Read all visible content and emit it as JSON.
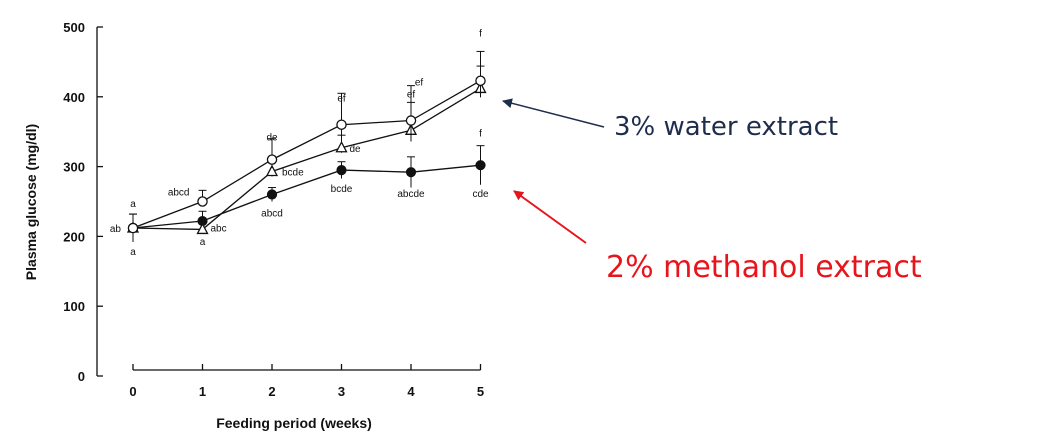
{
  "chart_data": {
    "type": "line",
    "title": "",
    "xlabel": "Feeding period  (weeks)",
    "ylabel": "Plasma glucose  (mg/dl)",
    "x": [
      0,
      1,
      2,
      3,
      4,
      5
    ],
    "xlim": [
      0,
      5
    ],
    "ylim": [
      0,
      500
    ],
    "yticks": [
      0,
      100,
      200,
      300,
      400,
      500
    ],
    "grid": false,
    "legend": "none",
    "series": [
      {
        "marker": "open-circle",
        "values": [
          212,
          250,
          310,
          360,
          366,
          423
        ],
        "errors": [
          20,
          16,
          30,
          45,
          50,
          42
        ],
        "labels": [
          "a",
          "abcd",
          "de",
          "ef",
          "ef",
          "f"
        ]
      },
      {
        "marker": "open-triangle",
        "values": [
          212,
          210,
          293,
          327,
          352,
          412
        ],
        "errors": [
          20,
          12,
          18,
          18,
          40,
          32
        ],
        "labels": [
          "ab",
          "abc",
          "bcde",
          "de",
          "ef",
          "f"
        ]
      },
      {
        "marker": "filled-circle",
        "values": [
          212,
          222,
          260,
          295,
          292,
          302
        ],
        "errors": [
          20,
          14,
          10,
          12,
          22,
          28
        ],
        "labels": [
          "a",
          "a",
          "abcd",
          "bcde",
          "abcde",
          "cde"
        ]
      }
    ],
    "annotations": [
      {
        "text": "3% water extract",
        "color": "#1f2d4d",
        "points_to": "open symbols at week 5"
      },
      {
        "text": "2% methanol extract",
        "color": "#e8141b",
        "points_to": "filled circle at week 5"
      }
    ]
  },
  "colors": {
    "plot": "#111111",
    "water_annotation": "#1f2d4d",
    "methanol_annotation": "#e8141b"
  }
}
